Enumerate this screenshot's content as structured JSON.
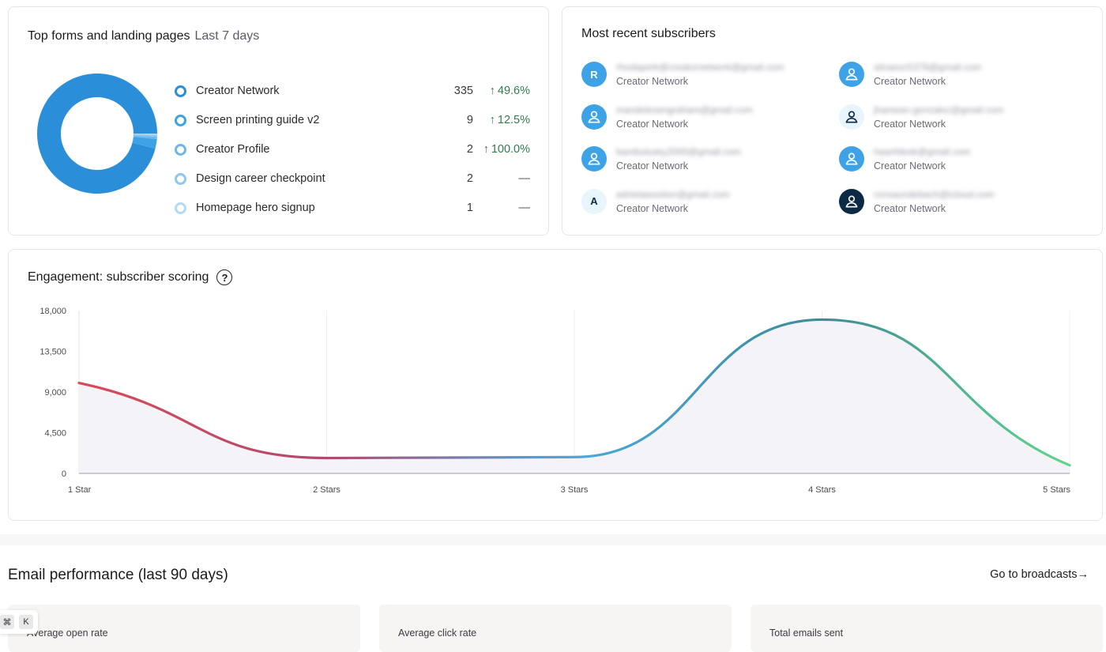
{
  "forms": {
    "title": "Top forms and landing pages",
    "period": "Last 7 days",
    "items": [
      {
        "name": "Creator Network",
        "count": "335",
        "change": "49.6%",
        "trend": "up",
        "color": "#2a8fd8",
        "value": 335
      },
      {
        "name": "Screen printing guide v2",
        "count": "9",
        "change": "12.5%",
        "trend": "up",
        "color": "#3ea3e6",
        "value": 9
      },
      {
        "name": "Creator Profile",
        "count": "2",
        "change": "100.0%",
        "trend": "up",
        "color": "#6cb8ec",
        "value": 2
      },
      {
        "name": "Design career checkpoint",
        "count": "2",
        "change": "—",
        "trend": "none",
        "color": "#8ec8f0",
        "value": 2
      },
      {
        "name": "Homepage hero signup",
        "count": "1",
        "change": "—",
        "trend": "none",
        "color": "#b3daf5",
        "value": 1
      }
    ]
  },
  "subscribers": {
    "title": "Most recent subscribers",
    "items": [
      {
        "avatar": "R",
        "avatar_type": "letter",
        "bg": "#3ea3e6",
        "fg": "#ffffff",
        "email": "rhodaperk@creatornetwork@gmail.com",
        "source": "Creator Network"
      },
      {
        "avatar": "",
        "avatar_type": "person-icon",
        "bg": "#3ea3e6",
        "fg": "#ffffff",
        "email": "silvaesc5378@gmail.com",
        "source": "Creator Network"
      },
      {
        "avatar": "",
        "avatar_type": "person-icon",
        "bg": "#3ea3e6",
        "fg": "#ffffff",
        "email": "mandelesengraham@gmail.com",
        "source": "Creator Network"
      },
      {
        "avatar": "",
        "avatar_type": "person-icon",
        "bg": "#e9f5fc",
        "fg": "#0d2a44",
        "email": "jhamean.gonzalez@gmail.com",
        "source": "Creator Network"
      },
      {
        "avatar": "",
        "avatar_type": "person-icon",
        "bg": "#3ea3e6",
        "fg": "#ffffff",
        "email": "bambulusky2000@gmail.com",
        "source": "Creator Network"
      },
      {
        "avatar": "",
        "avatar_type": "person-icon",
        "bg": "#3ea3e6",
        "fg": "#ffffff",
        "email": "haanhleek@gmail.com",
        "source": "Creator Network"
      },
      {
        "avatar": "A",
        "avatar_type": "letter",
        "bg": "#e9f5fc",
        "fg": "#0d2a44",
        "email": "adrielawoolion@gmail.com",
        "source": "Creator Network"
      },
      {
        "avatar": "",
        "avatar_type": "person-icon",
        "bg": "#0d2a44",
        "fg": "#ffffff",
        "email": "ronsaundebach@icloud.com",
        "source": "Creator Network"
      }
    ]
  },
  "engagement": {
    "title": "Engagement: subscriber scoring",
    "help_icon": "question-circle-icon"
  },
  "chart_data": {
    "type": "area",
    "title": "Engagement: subscriber scoring",
    "categories": [
      "1 Star",
      "2 Stars",
      "3 Stars",
      "4 Stars",
      "5 Stars"
    ],
    "values": [
      10000,
      1700,
      1800,
      17000,
      900
    ],
    "yticks": [
      "18,000",
      "13,500",
      "9,000",
      "4,500",
      "0"
    ],
    "ylim": [
      0,
      18000
    ],
    "gradient": [
      "#d94a5a",
      "#b04a6e",
      "#4da7e0",
      "#3d8c96",
      "#5ed68a"
    ],
    "grid": true
  },
  "performance": {
    "title": "Email performance (last 90 days)",
    "link": "Go to broadcasts",
    "link_arrow": "→",
    "stats": [
      {
        "label": "Average open rate"
      },
      {
        "label": "Average click rate"
      },
      {
        "label": "Total emails sent"
      }
    ]
  },
  "kbd": [
    "⌘",
    "K"
  ]
}
